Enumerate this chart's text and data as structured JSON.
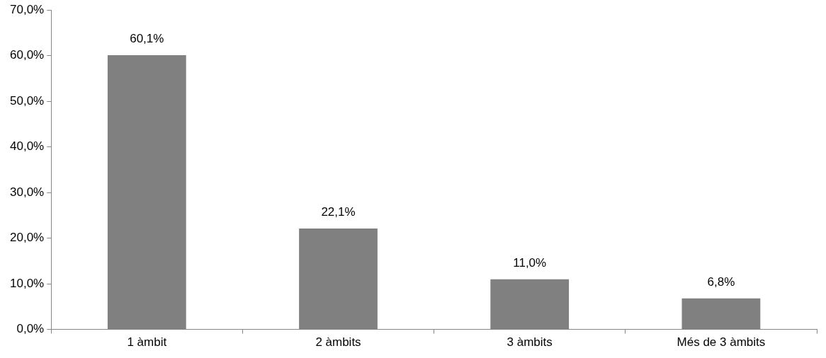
{
  "chart_data": {
    "type": "bar",
    "categories": [
      "1 àmbit",
      "2 àmbits",
      "3 àmbits",
      "Més de 3 àmbits"
    ],
    "values": [
      60.1,
      22.1,
      11.0,
      6.8
    ],
    "color": "#808080",
    "value_labels": [
      "60,1%",
      "22,1%",
      "11,0%",
      "6,8%"
    ],
    "ylim": [
      0,
      70
    ],
    "yticks": [
      {
        "value": 0,
        "label": "0,0%"
      },
      {
        "value": 10,
        "label": "10,0%"
      },
      {
        "value": 20,
        "label": "20,0%"
      },
      {
        "value": 30,
        "label": "30,0%"
      },
      {
        "value": 40,
        "label": "40,0%"
      },
      {
        "value": 50,
        "label": "50,0%"
      },
      {
        "value": 60,
        "label": "60,0%"
      },
      {
        "value": 70,
        "label": "70,0%"
      }
    ],
    "grid": false,
    "legend": false
  }
}
